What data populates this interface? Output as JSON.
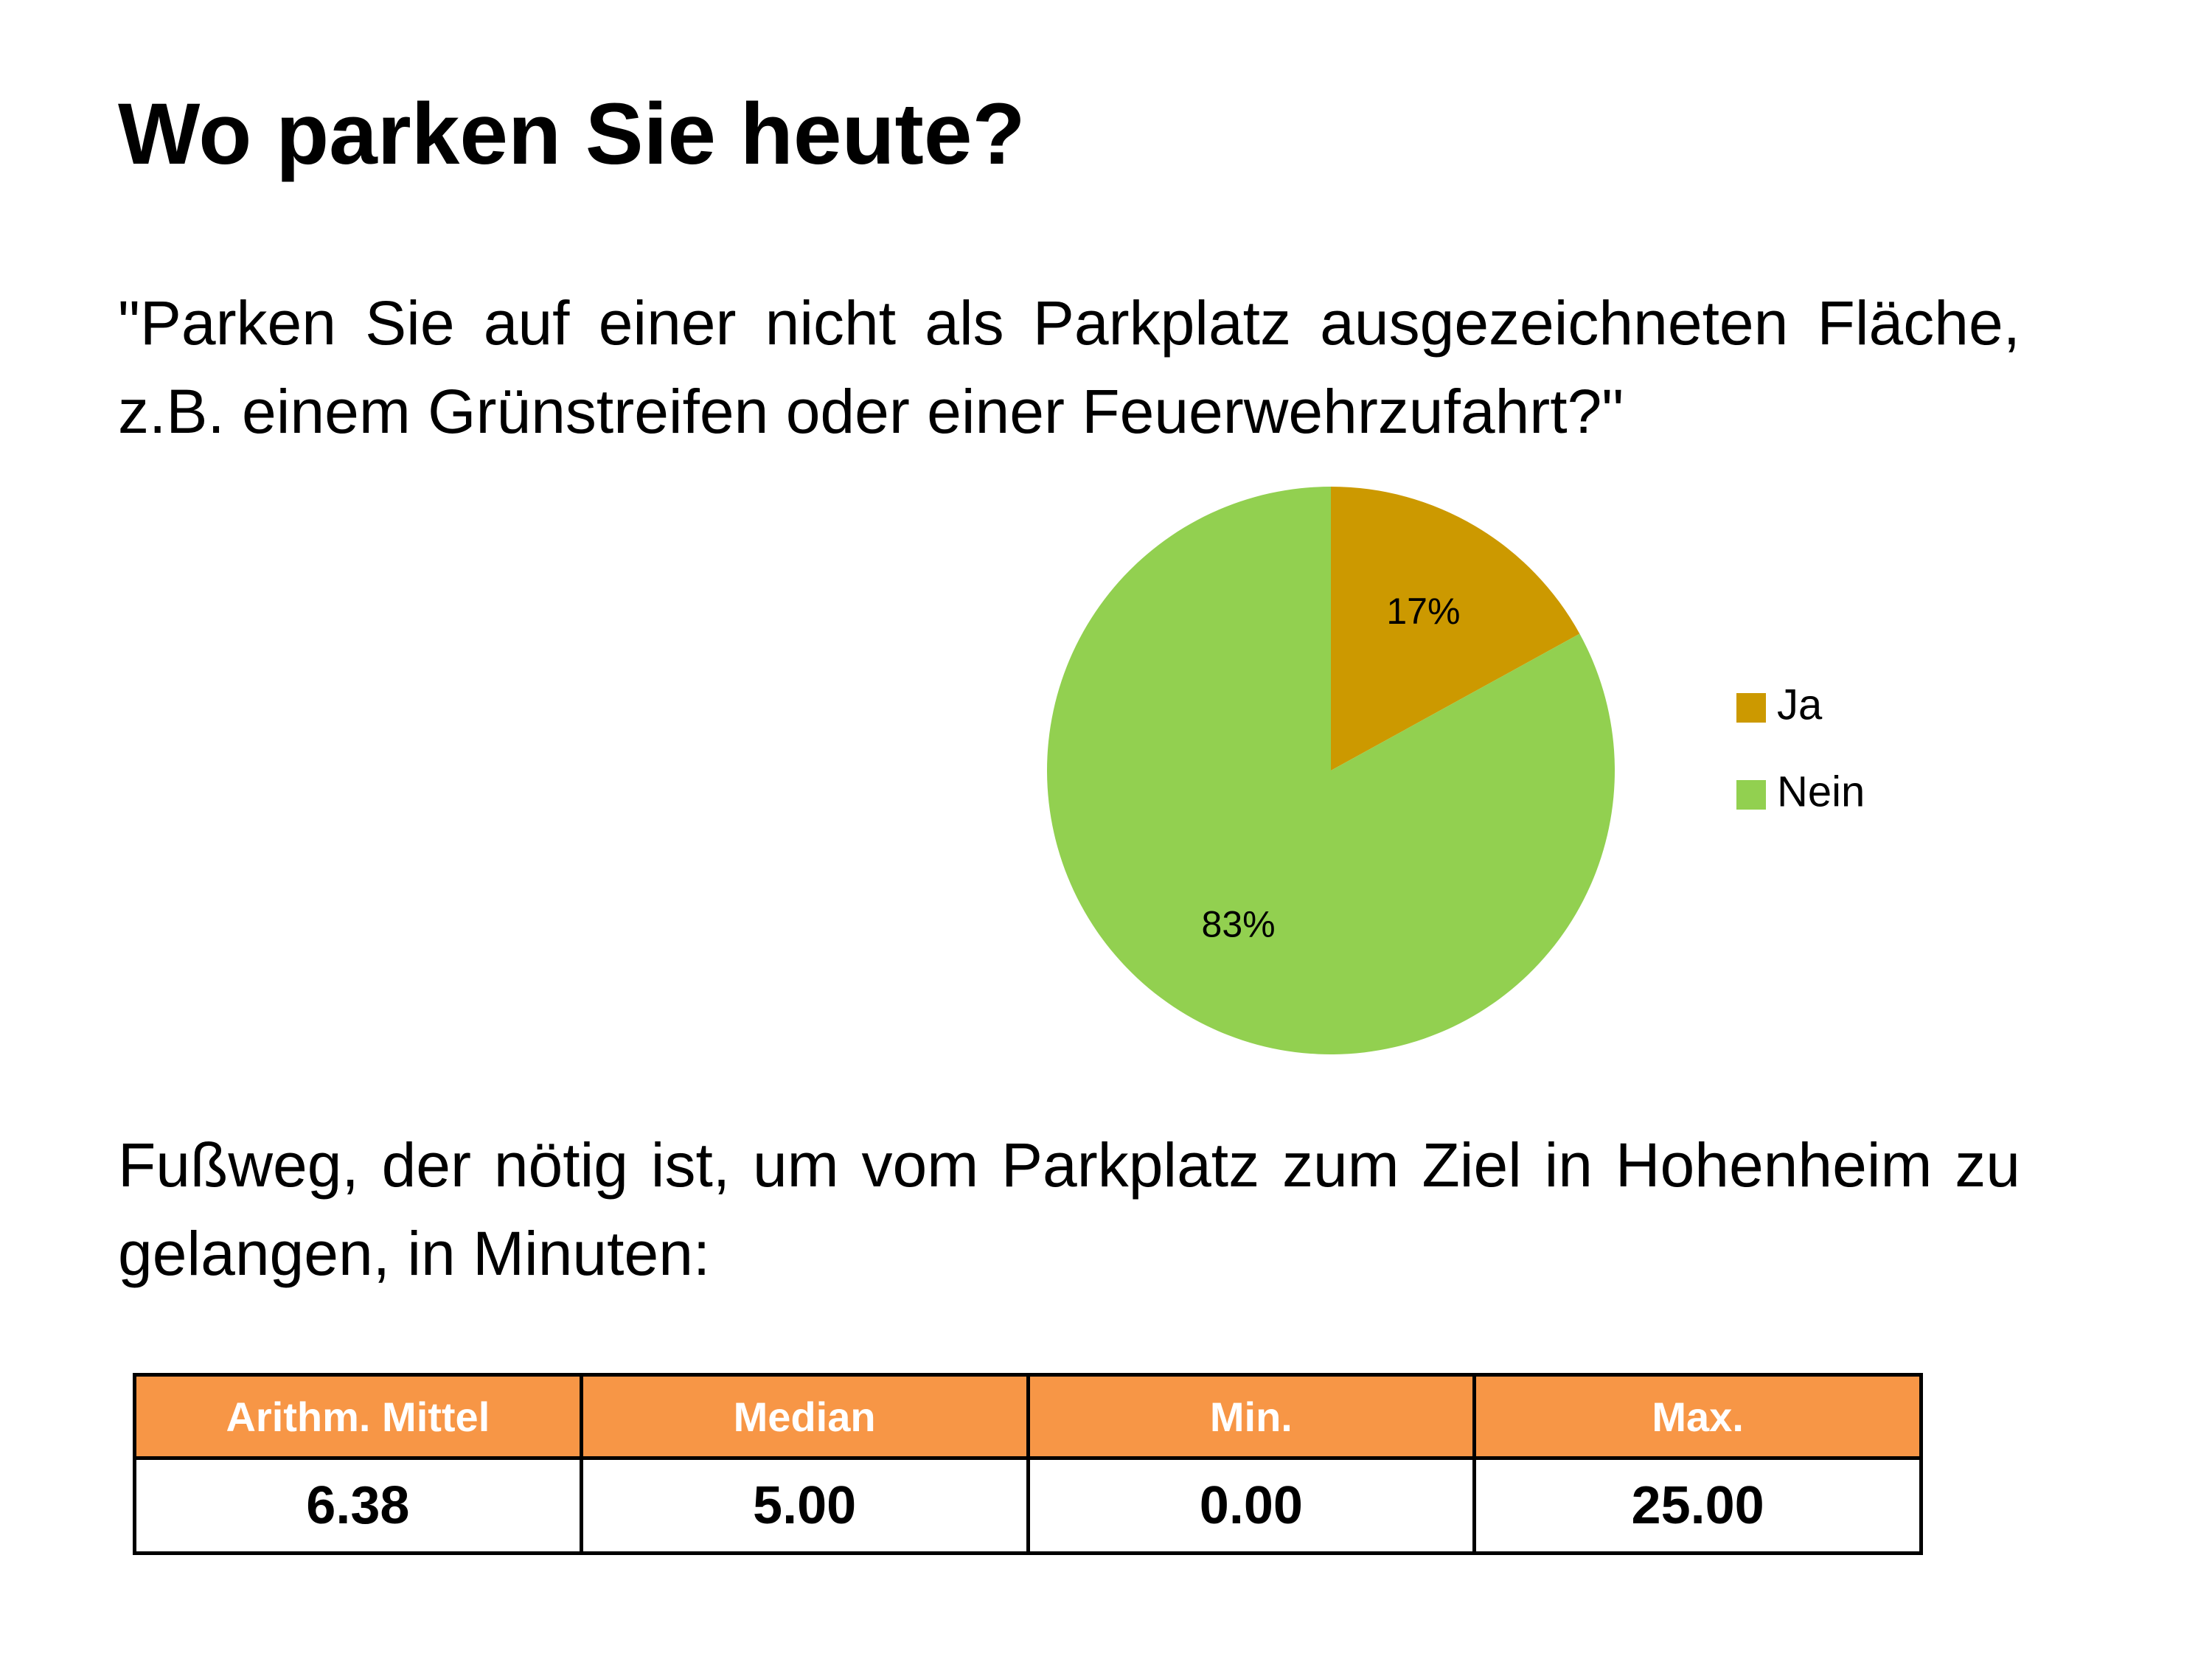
{
  "page": {
    "title": "Wo parken Sie heute?",
    "question": "\"Parken Sie auf einer nicht als Parkplatz ausgezeichneten Fläche, z.B. einem Grünstreifen oder einer Feuerwehrzufahrt?\"",
    "walk_text": "Fußweg, der nötig ist, um vom Parkplatz zum Ziel in Hohenheim zu gelangen, in Minuten:"
  },
  "chart_data": [
    {
      "type": "pie",
      "title": "",
      "categories": [
        "Ja",
        "Nein"
      ],
      "values": [
        17,
        83
      ],
      "value_labels": [
        "17%",
        "83%"
      ],
      "colors": [
        "#cc9900",
        "#92d050"
      ],
      "legend": "right"
    },
    {
      "type": "table",
      "columns": [
        "Arithm. Mittel",
        "Median",
        "Min.",
        "Max."
      ],
      "rows": [
        [
          "6.38",
          "5.00",
          "0.00",
          "25.00"
        ]
      ],
      "header_color": "#f79646"
    }
  ]
}
